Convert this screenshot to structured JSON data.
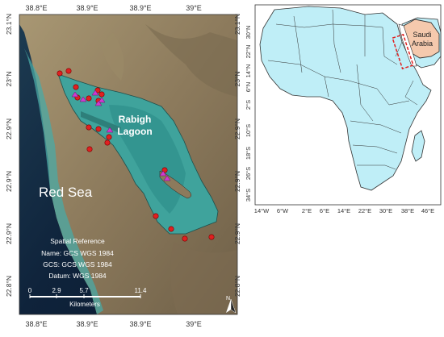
{
  "left_map": {
    "top_lon_labels": [
      "38.8°E",
      "38.9°E",
      "38.9°E",
      "39°E"
    ],
    "bottom_lon_labels": [
      "38.8°E",
      "38.9°E",
      "38.9°E",
      "39°E"
    ],
    "left_lat_labels": [
      "23.1°N",
      "23°N",
      "22.9°N",
      "22.9°N",
      "22.9°N",
      "22.8°N"
    ],
    "right_lat_labels": [
      "23.1°N",
      "23°N",
      "22.9°N",
      "22.9°N",
      "22.9°N",
      "22.8°N"
    ],
    "sea_label": "Red Sea",
    "lagoon_label_line1": "Rabigh",
    "lagoon_label_line2": "Lagoon",
    "spatial_ref": {
      "title": "Spatial Reference",
      "name": "Name: GCS WGS 1984",
      "gcs": "GCS: GCS WGS 1984",
      "datum": "Datum: WGS 1984"
    },
    "scale_bar": {
      "ticks": [
        "0",
        "2.9",
        "5.7",
        "11.4"
      ],
      "unit": "Kilometers"
    },
    "north_arrow_label": "N",
    "colors": {
      "red_marker": "#e02020",
      "magenta_marker": "#d03ad0",
      "lagoon_water": "#3fa39c",
      "deep_sea": "#10233e",
      "land": "#8c7a5c"
    }
  },
  "right_map": {
    "lat_labels": [
      "30°N",
      "22°N",
      "14°N",
      "6°N",
      "2°S",
      "10°S",
      "18°S",
      "26°S",
      "34°S"
    ],
    "lon_labels": [
      "14°W",
      "6°W",
      "2°E",
      "6°E",
      "14°E",
      "22°E",
      "30°E",
      "38°E",
      "46°E"
    ],
    "country_label_line1": "Saudi",
    "country_label_line2": "Arabia",
    "colors": {
      "africa_fill": "#bfeef7",
      "saudi_fill": "#f5c9ad",
      "study_box": "#e02020"
    }
  }
}
